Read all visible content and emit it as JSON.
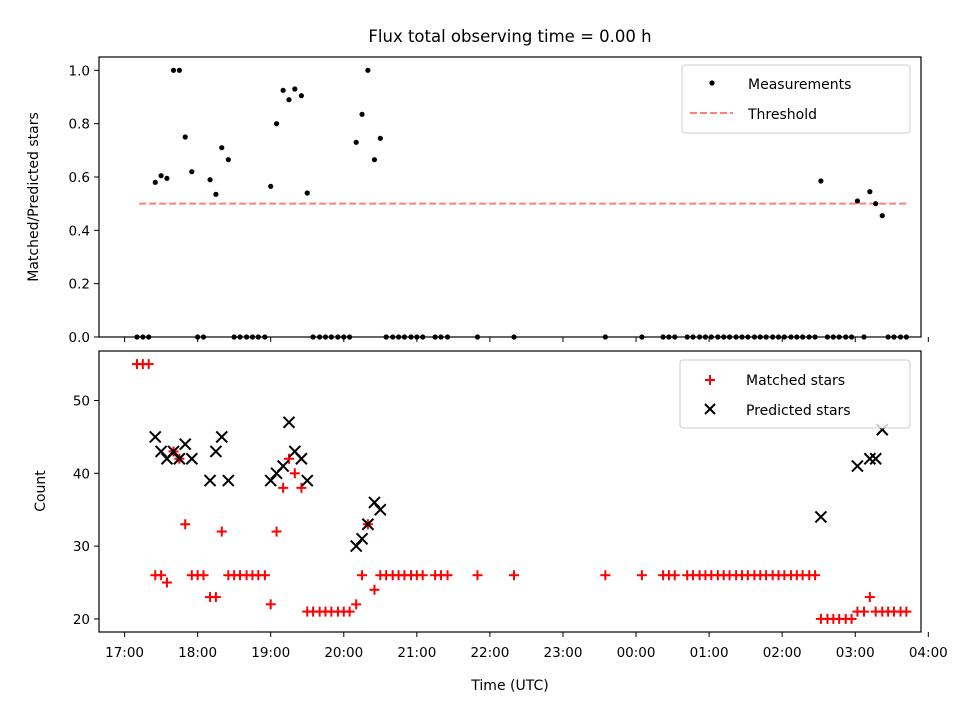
{
  "chart_data": [
    {
      "type": "scatter",
      "title": "Flux total observing time = 0.00 h",
      "xlabel": "",
      "ylabel": "Matched/Predicted stars",
      "xlim_hours": [
        16.65,
        27.9
      ],
      "ylim": [
        0.0,
        1.05
      ],
      "yticks": [
        "0.0",
        "0.2",
        "0.4",
        "0.6",
        "0.8",
        "1.0"
      ],
      "legend": {
        "location": "upper right",
        "entries": [
          "Measurements",
          "Threshold"
        ]
      },
      "threshold": {
        "name": "Threshold",
        "value": 0.5,
        "x_start": 17.2,
        "x_end": 27.7,
        "color": "#ff7f7f"
      },
      "series": [
        {
          "name": "Measurements",
          "marker": "dot",
          "color": "#000000",
          "x": [
            17.17,
            17.25,
            17.33,
            17.42,
            17.5,
            17.58,
            17.67,
            17.75,
            17.83,
            17.92,
            18.0,
            18.08,
            18.17,
            18.25,
            18.33,
            18.42,
            18.5,
            18.58,
            18.67,
            18.75,
            18.83,
            18.92,
            19.0,
            19.08,
            19.17,
            19.25,
            19.33,
            19.42,
            19.5,
            19.58,
            19.67,
            19.75,
            19.83,
            19.92,
            20.0,
            20.08,
            20.17,
            20.25,
            20.33,
            20.42,
            20.5,
            20.58,
            20.67,
            20.75,
            20.83,
            20.92,
            21.0,
            21.08,
            21.25,
            21.33,
            21.42,
            21.83,
            22.33,
            23.58,
            24.08,
            24.37,
            24.45,
            24.53,
            24.7,
            24.78,
            24.87,
            24.95,
            25.03,
            25.12,
            25.2,
            25.28,
            25.37,
            25.45,
            25.53,
            25.62,
            25.7,
            25.78,
            25.87,
            25.95,
            26.03,
            26.12,
            26.2,
            26.28,
            26.37,
            26.45,
            26.53,
            26.62,
            26.7,
            26.78,
            26.87,
            26.95,
            27.03,
            27.12,
            27.2,
            27.28,
            27.37,
            27.45,
            27.53,
            27.62,
            27.7
          ],
          "y": [
            0,
            0,
            0,
            0.58,
            0.605,
            0.595,
            1.0,
            1.0,
            0.75,
            0.62,
            0,
            0,
            0.59,
            0.535,
            0.71,
            0.665,
            0,
            0,
            0,
            0,
            0,
            0,
            0.565,
            0.8,
            0.925,
            0.89,
            0.93,
            0.905,
            0.54,
            0,
            0,
            0,
            0,
            0,
            0,
            0,
            0.73,
            0.835,
            1.0,
            0.665,
            0.745,
            0,
            0,
            0,
            0,
            0,
            0,
            0,
            0,
            0,
            0,
            0,
            0,
            0,
            0,
            0,
            0,
            0,
            0,
            0,
            0,
            0,
            0,
            0,
            0,
            0,
            0,
            0,
            0,
            0,
            0,
            0,
            0,
            0,
            0,
            0,
            0,
            0,
            0,
            0,
            0.585,
            0,
            0,
            0,
            0,
            0,
            0.51,
            0,
            0.545,
            0.5,
            0.455,
            0,
            0,
            0,
            0
          ]
        }
      ]
    },
    {
      "type": "scatter",
      "title": "",
      "xlabel": "Time (UTC)",
      "ylabel": "Count",
      "xlim_hours": [
        16.65,
        27.9
      ],
      "ylim": [
        18.2,
        56.8
      ],
      "yticks": [
        "20",
        "30",
        "40",
        "50"
      ],
      "xtick_hours": [
        17,
        18,
        19,
        20,
        21,
        22,
        23,
        24,
        25,
        26,
        27,
        28
      ],
      "xtick_labels": [
        "17:00",
        "18:00",
        "19:00",
        "20:00",
        "21:00",
        "22:00",
        "23:00",
        "00:00",
        "01:00",
        "02:00",
        "03:00",
        "04:00"
      ],
      "legend": {
        "location": "upper right",
        "entries": [
          "Matched stars",
          "Predicted stars"
        ]
      },
      "series": [
        {
          "name": "Matched stars",
          "marker": "plus",
          "color": "#ff0000",
          "x": [
            17.17,
            17.25,
            17.33,
            17.42,
            17.5,
            17.58,
            17.67,
            17.75,
            17.83,
            17.92,
            18.0,
            18.08,
            18.17,
            18.25,
            18.33,
            18.42,
            18.5,
            18.58,
            18.67,
            18.75,
            18.83,
            18.92,
            19.0,
            19.08,
            19.17,
            19.25,
            19.33,
            19.42,
            19.5,
            19.58,
            19.67,
            19.75,
            19.83,
            19.92,
            20.0,
            20.08,
            20.17,
            20.25,
            20.33,
            20.42,
            20.5,
            20.58,
            20.67,
            20.75,
            20.83,
            20.92,
            21.0,
            21.08,
            21.25,
            21.33,
            21.42,
            21.83,
            22.33,
            23.58,
            24.08,
            24.37,
            24.45,
            24.53,
            24.7,
            24.78,
            24.87,
            24.95,
            25.03,
            25.12,
            25.2,
            25.28,
            25.37,
            25.45,
            25.53,
            25.62,
            25.7,
            25.78,
            25.87,
            25.95,
            26.03,
            26.12,
            26.2,
            26.28,
            26.37,
            26.45,
            26.53,
            26.62,
            26.7,
            26.78,
            26.87,
            26.95,
            27.03,
            27.12,
            27.2,
            27.28,
            27.37,
            27.45,
            27.53,
            27.62,
            27.7
          ],
          "y": [
            55,
            55,
            55,
            26,
            26,
            25,
            43,
            42,
            33,
            26,
            26,
            26,
            23,
            23,
            32,
            26,
            26,
            26,
            26,
            26,
            26,
            26,
            22,
            32,
            38,
            42,
            40,
            38,
            21,
            21,
            21,
            21,
            21,
            21,
            21,
            21,
            22,
            26,
            33,
            24,
            26,
            26,
            26,
            26,
            26,
            26,
            26,
            26,
            26,
            26,
            26,
            26,
            26,
            26,
            26,
            26,
            26,
            26,
            26,
            26,
            26,
            26,
            26,
            26,
            26,
            26,
            26,
            26,
            26,
            26,
            26,
            26,
            26,
            26,
            26,
            26,
            26,
            26,
            26,
            26,
            20,
            20,
            20,
            20,
            20,
            20,
            21,
            21,
            23,
            21,
            21,
            21,
            21,
            21,
            21
          ]
        },
        {
          "name": "Predicted stars",
          "marker": "x",
          "color": "#000000",
          "x": [
            17.42,
            17.5,
            17.58,
            17.67,
            17.75,
            17.83,
            17.92,
            18.17,
            18.25,
            18.33,
            18.42,
            19.0,
            19.08,
            19.17,
            19.25,
            19.33,
            19.42,
            19.5,
            20.17,
            20.25,
            20.33,
            20.42,
            20.5,
            26.53,
            27.03,
            27.2,
            27.28,
            27.37
          ],
          "y": [
            45,
            43,
            42,
            43,
            42,
            44,
            42,
            39,
            43,
            45,
            39,
            39,
            40,
            41,
            47,
            43,
            42,
            39,
            30,
            31,
            33,
            36,
            35,
            34,
            41,
            42,
            42,
            46
          ]
        }
      ]
    }
  ]
}
